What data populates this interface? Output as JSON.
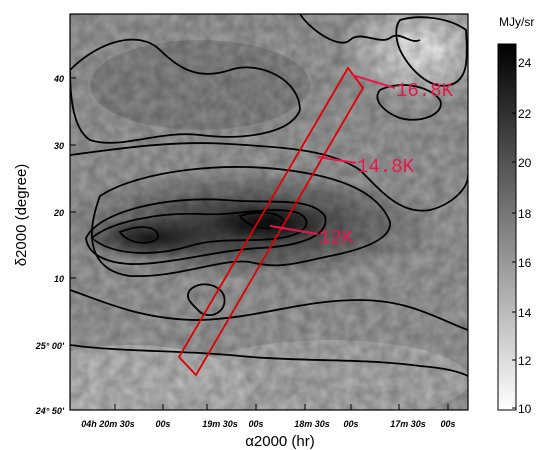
{
  "chart_data": {
    "type": "heatmap",
    "title": "",
    "xlabel": "α2000 (hr)",
    "ylabel": "δ2000 (degree)",
    "x_tick_labels": [
      "04h 20m 30s",
      "00s",
      "19m 30s",
      "00s",
      "18m 30s",
      "00s",
      "17m 30s",
      "00s"
    ],
    "y_tick_labels": [
      "24° 50'",
      "25° 00'",
      "10",
      "20",
      "30",
      "40"
    ],
    "colorbar": {
      "unit": "MJy/sr",
      "ticks": [
        "10",
        "12",
        "14",
        "16",
        "18",
        "20",
        "22",
        "24"
      ],
      "range": [
        10,
        25
      ],
      "colormap": "gray"
    },
    "contours": "black",
    "annotations": [
      {
        "text": "16.8K",
        "color": "#e8174b"
      },
      {
        "text": "14.8K",
        "color": "#e8174b"
      },
      {
        "text": "12K",
        "color": "#e8174b"
      }
    ],
    "overlay": {
      "shape": "strip",
      "color": "#e00000"
    }
  }
}
